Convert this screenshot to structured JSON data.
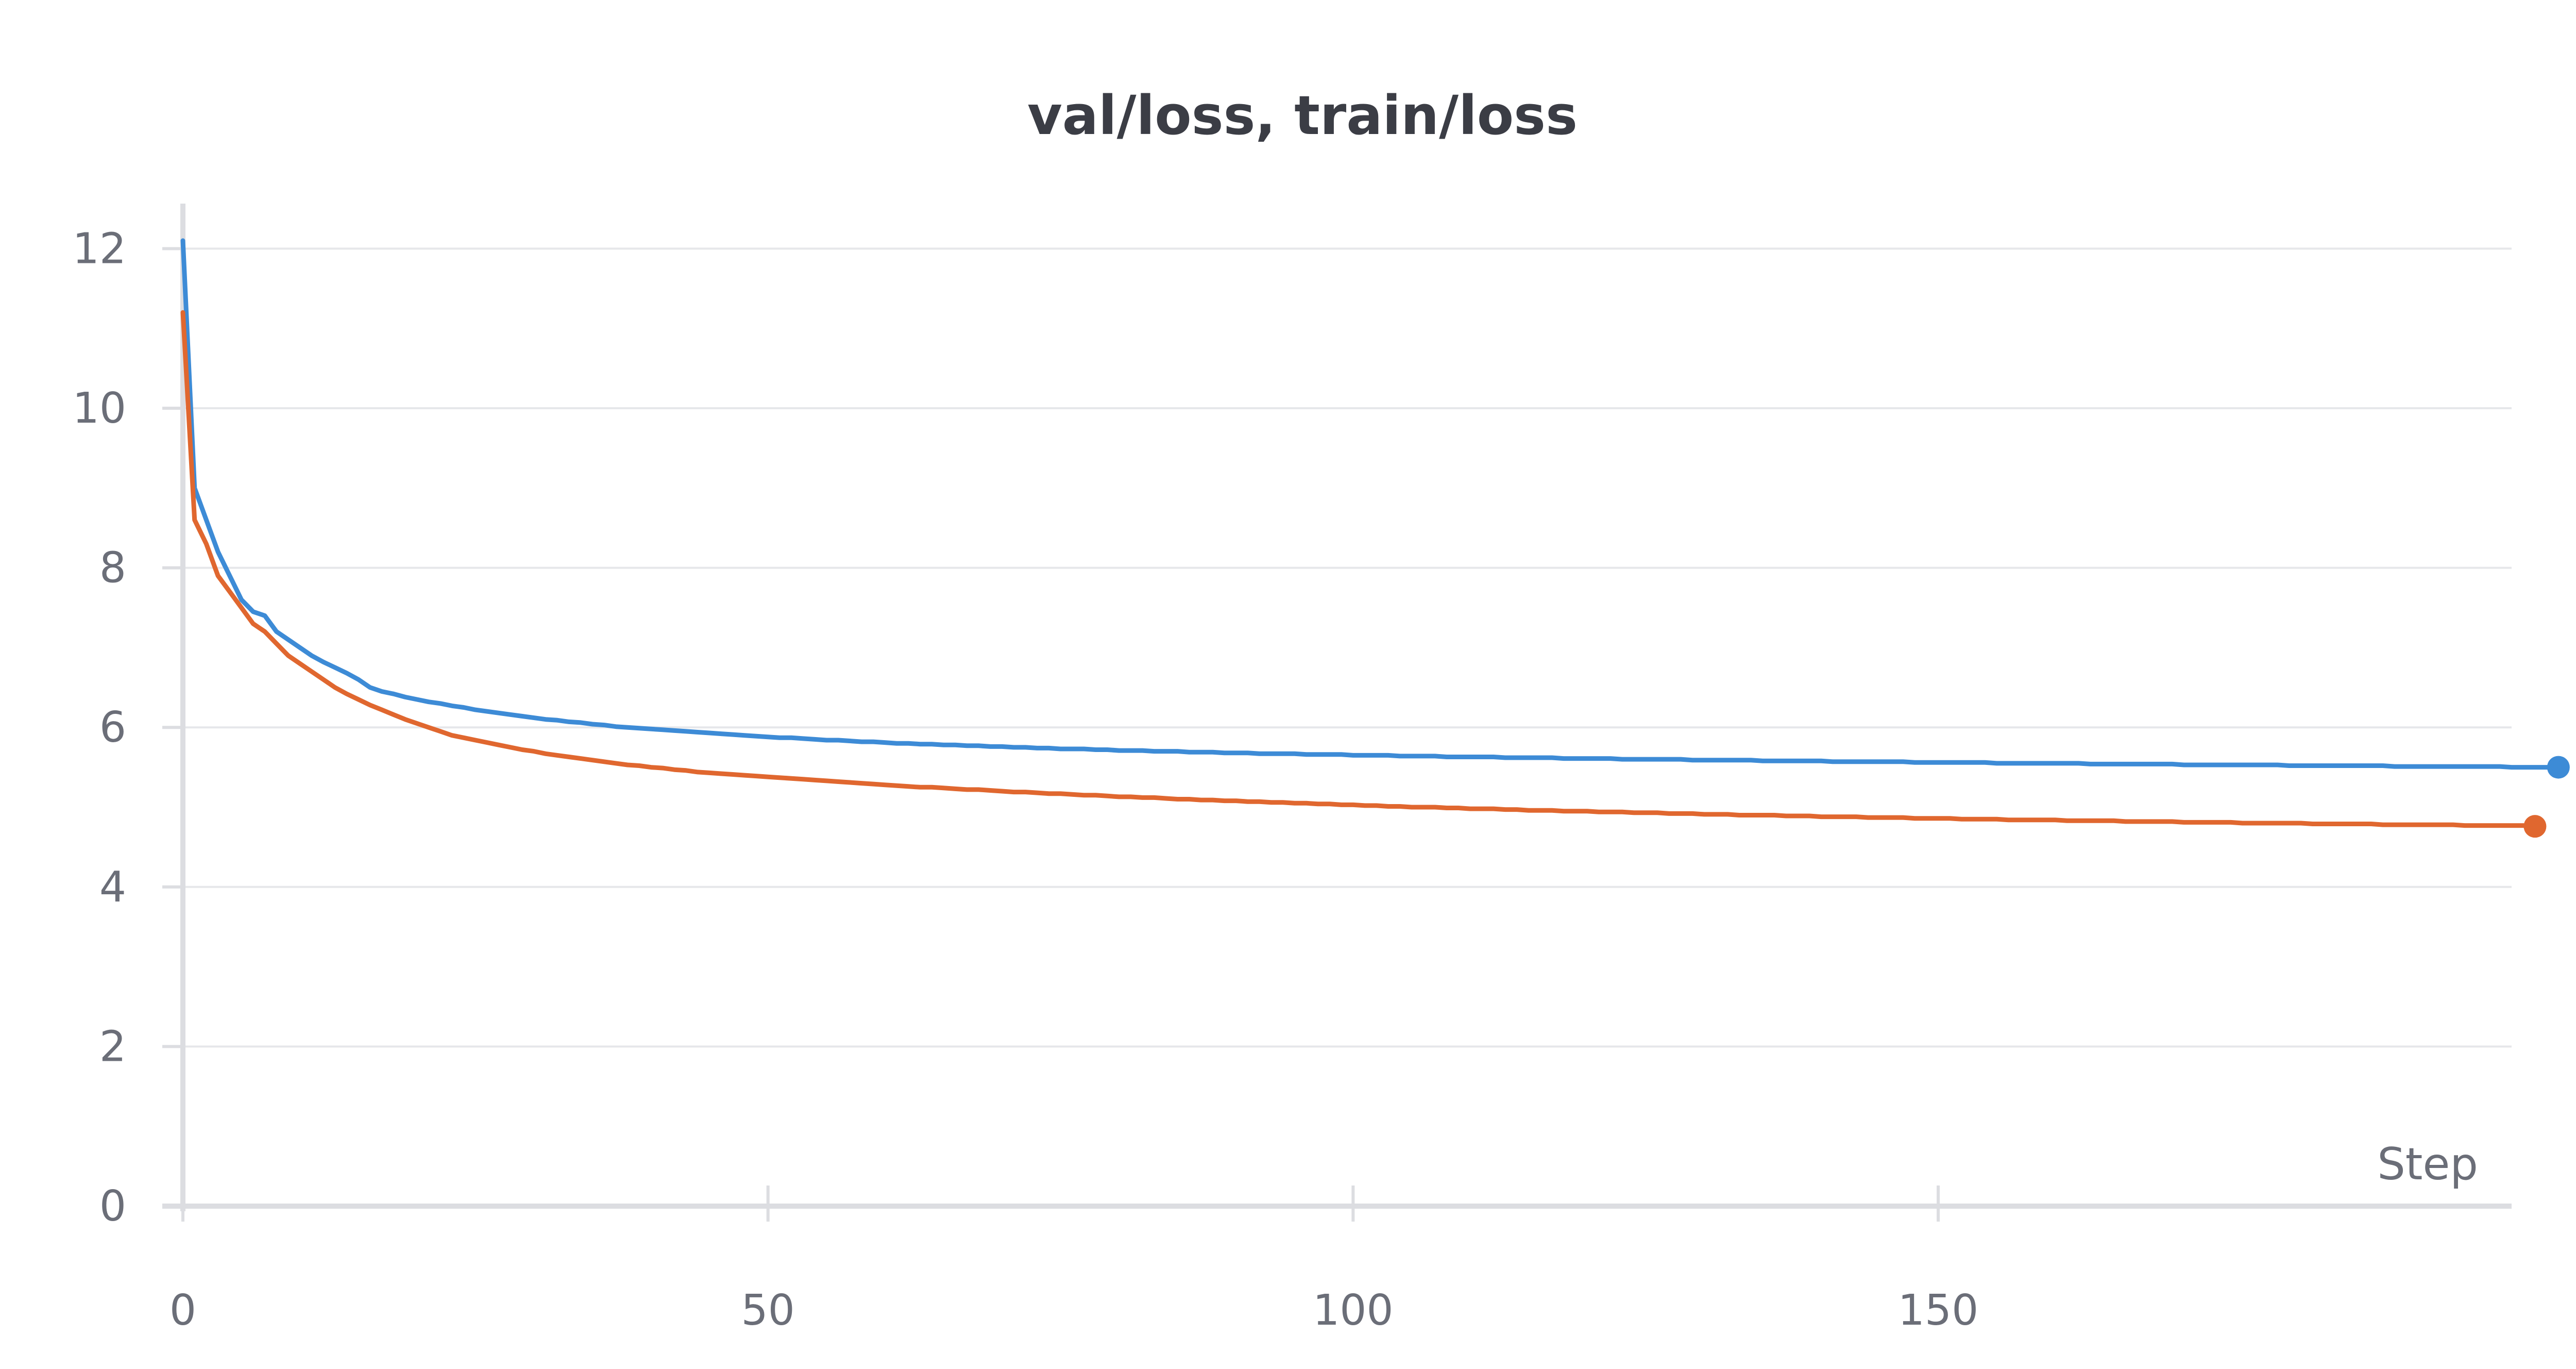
{
  "chart_data": {
    "type": "line",
    "title": "val/loss, train/loss",
    "xlabel": "Step",
    "ylabel": "",
    "xlim": [
      0,
      199
    ],
    "ylim": [
      0,
      12.5
    ],
    "x_ticks": [
      0,
      50,
      100,
      150
    ],
    "y_ticks": [
      0,
      2,
      4,
      6,
      8,
      10,
      12
    ],
    "grid": true,
    "legend": "none",
    "series": [
      {
        "color": "#3d8bd6",
        "values": [
          12.1,
          9.0,
          8.6,
          8.2,
          7.9,
          7.6,
          7.45,
          7.4,
          7.2,
          7.1,
          7.0,
          6.9,
          6.82,
          6.75,
          6.68,
          6.6,
          6.5,
          6.45,
          6.42,
          6.38,
          6.35,
          6.32,
          6.3,
          6.27,
          6.25,
          6.22,
          6.2,
          6.18,
          6.16,
          6.14,
          6.12,
          6.1,
          6.09,
          6.07,
          6.06,
          6.04,
          6.03,
          6.01,
          6.0,
          5.99,
          5.98,
          5.97,
          5.96,
          5.95,
          5.94,
          5.93,
          5.92,
          5.91,
          5.9,
          5.89,
          5.88,
          5.87,
          5.87,
          5.86,
          5.85,
          5.84,
          5.84,
          5.83,
          5.82,
          5.82,
          5.81,
          5.8,
          5.8,
          5.79,
          5.79,
          5.78,
          5.78,
          5.77,
          5.77,
          5.76,
          5.76,
          5.75,
          5.75,
          5.74,
          5.74,
          5.73,
          5.73,
          5.73,
          5.72,
          5.72,
          5.71,
          5.71,
          5.71,
          5.7,
          5.7,
          5.7,
          5.69,
          5.69,
          5.69,
          5.68,
          5.68,
          5.68,
          5.67,
          5.67,
          5.67,
          5.67,
          5.66,
          5.66,
          5.66,
          5.66,
          5.65,
          5.65,
          5.65,
          5.65,
          5.64,
          5.64,
          5.64,
          5.64,
          5.63,
          5.63,
          5.63,
          5.63,
          5.63,
          5.62,
          5.62,
          5.62,
          5.62,
          5.62,
          5.61,
          5.61,
          5.61,
          5.61,
          5.61,
          5.6,
          5.6,
          5.6,
          5.6,
          5.6,
          5.6,
          5.59,
          5.59,
          5.59,
          5.59,
          5.59,
          5.59,
          5.58,
          5.58,
          5.58,
          5.58,
          5.58,
          5.58,
          5.57,
          5.57,
          5.57,
          5.57,
          5.57,
          5.57,
          5.57,
          5.56,
          5.56,
          5.56,
          5.56,
          5.56,
          5.56,
          5.56,
          5.55,
          5.55,
          5.55,
          5.55,
          5.55,
          5.55,
          5.55,
          5.55,
          5.54,
          5.54,
          5.54,
          5.54,
          5.54,
          5.54,
          5.54,
          5.54,
          5.53,
          5.53,
          5.53,
          5.53,
          5.53,
          5.53,
          5.53,
          5.53,
          5.53,
          5.52,
          5.52,
          5.52,
          5.52,
          5.52,
          5.52,
          5.52,
          5.52,
          5.52,
          5.51,
          5.51,
          5.51,
          5.51,
          5.51,
          5.51,
          5.51,
          5.51,
          5.51,
          5.51,
          5.5,
          5.5,
          5.5,
          5.5,
          5.5
        ]
      },
      {
        "color": "#e0672f",
        "values": [
          11.2,
          8.6,
          8.3,
          7.9,
          7.7,
          7.5,
          7.3,
          7.2,
          7.05,
          6.9,
          6.8,
          6.7,
          6.6,
          6.5,
          6.42,
          6.35,
          6.28,
          6.22,
          6.16,
          6.1,
          6.05,
          6.0,
          5.95,
          5.9,
          5.87,
          5.84,
          5.81,
          5.78,
          5.75,
          5.72,
          5.7,
          5.67,
          5.65,
          5.63,
          5.61,
          5.59,
          5.57,
          5.55,
          5.53,
          5.52,
          5.5,
          5.49,
          5.47,
          5.46,
          5.44,
          5.43,
          5.42,
          5.41,
          5.4,
          5.39,
          5.38,
          5.37,
          5.36,
          5.35,
          5.34,
          5.33,
          5.32,
          5.31,
          5.3,
          5.29,
          5.28,
          5.27,
          5.26,
          5.25,
          5.25,
          5.24,
          5.23,
          5.22,
          5.22,
          5.21,
          5.2,
          5.19,
          5.19,
          5.18,
          5.17,
          5.17,
          5.16,
          5.15,
          5.15,
          5.14,
          5.13,
          5.13,
          5.12,
          5.12,
          5.11,
          5.1,
          5.1,
          5.09,
          5.09,
          5.08,
          5.08,
          5.07,
          5.07,
          5.06,
          5.06,
          5.05,
          5.05,
          5.04,
          5.04,
          5.03,
          5.03,
          5.02,
          5.02,
          5.01,
          5.01,
          5.0,
          5.0,
          5.0,
          4.99,
          4.99,
          4.98,
          4.98,
          4.98,
          4.97,
          4.97,
          4.96,
          4.96,
          4.96,
          4.95,
          4.95,
          4.95,
          4.94,
          4.94,
          4.94,
          4.93,
          4.93,
          4.93,
          4.92,
          4.92,
          4.92,
          4.91,
          4.91,
          4.91,
          4.9,
          4.9,
          4.9,
          4.9,
          4.89,
          4.89,
          4.89,
          4.88,
          4.88,
          4.88,
          4.88,
          4.87,
          4.87,
          4.87,
          4.87,
          4.86,
          4.86,
          4.86,
          4.86,
          4.85,
          4.85,
          4.85,
          4.85,
          4.84,
          4.84,
          4.84,
          4.84,
          4.84,
          4.83,
          4.83,
          4.83,
          4.83,
          4.83,
          4.82,
          4.82,
          4.82,
          4.82,
          4.82,
          4.81,
          4.81,
          4.81,
          4.81,
          4.81,
          4.8,
          4.8,
          4.8,
          4.8,
          4.8,
          4.8,
          4.79,
          4.79,
          4.79,
          4.79,
          4.79,
          4.79,
          4.78,
          4.78,
          4.78,
          4.78,
          4.78,
          4.78,
          4.78,
          4.77,
          4.77,
          4.77,
          4.77,
          4.77,
          4.77,
          4.76
        ]
      }
    ]
  }
}
